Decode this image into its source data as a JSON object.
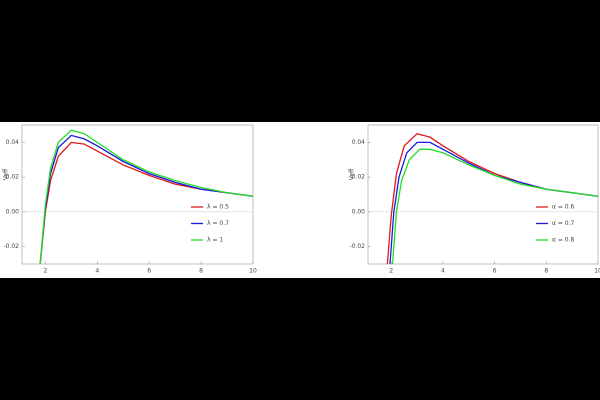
{
  "chart_data": [
    {
      "type": "line",
      "ylabel": "Veff",
      "xlim": [
        1.1,
        10
      ],
      "ylim": [
        -0.03,
        0.05
      ],
      "xticks": [
        2,
        4,
        6,
        8,
        10
      ],
      "yticks": [
        {
          "value": -0.02,
          "label": "-0.02"
        },
        {
          "value": 0,
          "label": "0.00"
        },
        {
          "value": 0.02,
          "label": "0.02"
        },
        {
          "value": 0.04,
          "label": "0.04"
        }
      ],
      "legend": "lower right",
      "series": [
        {
          "name": "λ = 0.5",
          "color": "#e0191c",
          "x": [
            1.8,
            2,
            2.2,
            2.5,
            3,
            3.5,
            4,
            5,
            6,
            7,
            8,
            9,
            10
          ],
          "values": [
            -0.03,
            0.0,
            0.018,
            0.032,
            0.04,
            0.039,
            0.035,
            0.027,
            0.021,
            0.016,
            0.013,
            0.011,
            0.009
          ]
        },
        {
          "name": "λ = 0.7",
          "color": "#1a1ae0",
          "x": [
            1.8,
            2,
            2.2,
            2.5,
            3,
            3.5,
            4,
            5,
            6,
            7,
            8,
            9,
            10
          ],
          "values": [
            -0.03,
            0.002,
            0.022,
            0.037,
            0.044,
            0.042,
            0.038,
            0.029,
            0.022,
            0.017,
            0.013,
            0.011,
            0.009
          ]
        },
        {
          "name": "λ = 1",
          "color": "#22dd22",
          "x": [
            1.8,
            2,
            2.2,
            2.5,
            3,
            3.5,
            4,
            5,
            6,
            7,
            8,
            9,
            10
          ],
          "values": [
            -0.03,
            0.004,
            0.025,
            0.04,
            0.047,
            0.045,
            0.04,
            0.03,
            0.023,
            0.018,
            0.014,
            0.011,
            0.009
          ]
        }
      ]
    },
    {
      "type": "line",
      "ylabel": "Veff",
      "xlim": [
        1.1,
        10
      ],
      "ylim": [
        -0.03,
        0.05
      ],
      "xticks": [
        2,
        4,
        6,
        8,
        10
      ],
      "yticks": [
        {
          "value": -0.02,
          "label": "-0.02"
        },
        {
          "value": 0,
          "label": "0.00"
        },
        {
          "value": 0.02,
          "label": "0.02"
        },
        {
          "value": 0.04,
          "label": "0.04"
        }
      ],
      "legend": "lower right",
      "series": [
        {
          "name": "α = 0.6",
          "color": "#e0191c",
          "x": [
            1.85,
            2,
            2.2,
            2.5,
            3,
            3.5,
            4,
            5,
            6,
            7,
            8,
            9,
            10
          ],
          "values": [
            -0.03,
            -0.002,
            0.022,
            0.038,
            0.045,
            0.043,
            0.038,
            0.029,
            0.022,
            0.017,
            0.013,
            0.011,
            0.009
          ]
        },
        {
          "name": "α = 0.7",
          "color": "#1a1ae0",
          "x": [
            1.95,
            2.1,
            2.3,
            2.6,
            3,
            3.5,
            4,
            5,
            6,
            7,
            8,
            9,
            10
          ],
          "values": [
            -0.03,
            0.0,
            0.02,
            0.034,
            0.04,
            0.04,
            0.036,
            0.028,
            0.021,
            0.017,
            0.013,
            0.011,
            0.009
          ]
        },
        {
          "name": "α = 0.8",
          "color": "#22dd22",
          "x": [
            2.05,
            2.2,
            2.4,
            2.7,
            3.1,
            3.5,
            4,
            5,
            6,
            7,
            8,
            9,
            10
          ],
          "values": [
            -0.03,
            0.0,
            0.018,
            0.03,
            0.036,
            0.036,
            0.034,
            0.027,
            0.021,
            0.016,
            0.013,
            0.011,
            0.009
          ]
        }
      ]
    }
  ]
}
